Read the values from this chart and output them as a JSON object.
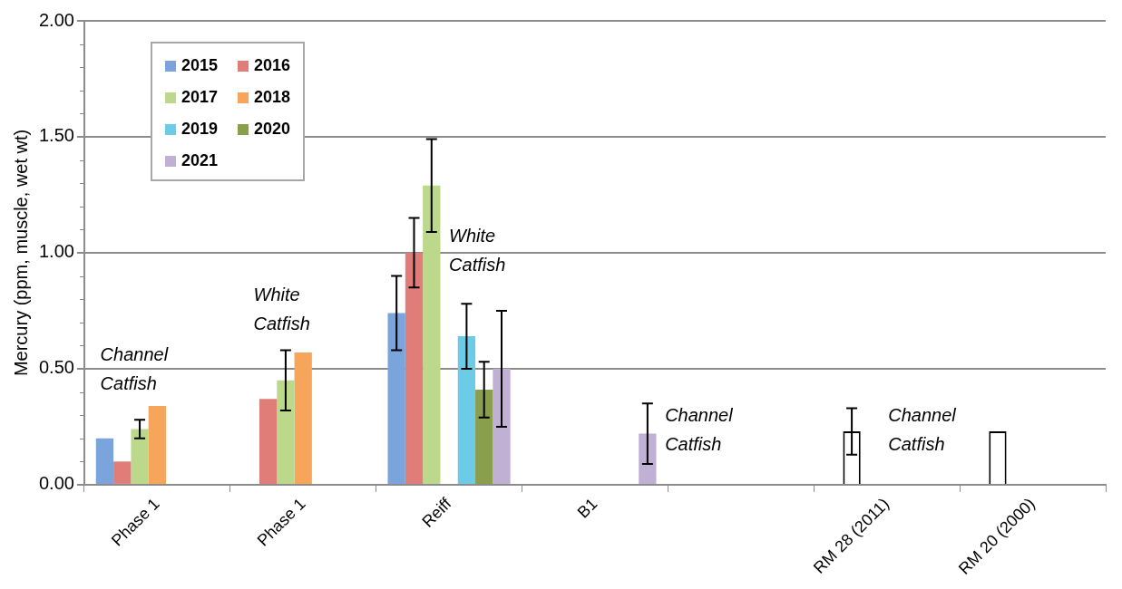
{
  "chart_data": {
    "type": "bar",
    "ylabel": "Mercury (ppm, muscle, wet wt)",
    "categories": [
      "Phase 1",
      "Phase 1",
      "Reiff",
      "B1",
      null,
      "RM 28 (2011)",
      "RM 20 (2000)"
    ],
    "ylim": [
      0,
      2
    ],
    "yticks": [
      {
        "value": 0,
        "label": "0.00"
      },
      {
        "value": 0.5,
        "label": "0.50"
      },
      {
        "value": 1,
        "label": "1.00"
      },
      {
        "value": 1.5,
        "label": "1.50"
      },
      {
        "value": 2,
        "label": "2.00"
      }
    ],
    "grid": "y",
    "legend": "top left",
    "series": [
      {
        "name": "2015",
        "color": "#7ba3dc",
        "values": [
          0.2,
          null,
          0.74,
          null,
          null,
          null,
          null
        ],
        "errors": [
          null,
          null,
          0.16,
          null,
          null,
          null,
          null
        ]
      },
      {
        "name": "2016",
        "color": "#e07d78",
        "values": [
          0.1,
          0.37,
          1.0,
          null,
          null,
          0.23,
          0.23
        ],
        "errors": [
          null,
          null,
          0.15,
          null,
          null,
          0.1,
          null
        ],
        "colors": [
          "#e07d78",
          "#e07d78",
          "#e07d78",
          "#e07d78",
          "#e07d78",
          "#ffffff",
          "#ffffff"
        ]
      },
      {
        "name": "2017",
        "color": "#bcd88a",
        "values": [
          0.24,
          0.45,
          1.29,
          null,
          null,
          null,
          null
        ],
        "errors": [
          0.04,
          0.13,
          0.2,
          null,
          null,
          null,
          null
        ]
      },
      {
        "name": "2018",
        "color": "#f6a55a",
        "values": [
          0.34,
          0.57,
          null,
          null,
          null,
          null,
          null
        ]
      },
      {
        "name": "2019",
        "color": "#6ccbe6",
        "values": [
          null,
          null,
          0.64,
          null,
          null,
          null,
          null
        ],
        "errors": [
          null,
          null,
          0.14,
          null,
          null,
          null,
          null
        ]
      },
      {
        "name": "2020",
        "color": "#8a9f4b",
        "values": [
          null,
          null,
          0.41,
          null,
          null,
          null,
          null
        ],
        "errors": [
          null,
          null,
          0.12,
          null,
          null,
          null,
          null
        ]
      },
      {
        "name": "2021",
        "color": "#bfb0d4",
        "values": [
          null,
          null,
          0.5,
          0.22,
          null,
          null,
          null
        ],
        "errors": [
          null,
          null,
          0.25,
          0.13,
          null,
          null,
          null
        ]
      }
    ],
    "annotations": [
      "Channel Catfish",
      "White Catfish",
      "White Catfish",
      "Channel Catfish",
      "Channel Catfish"
    ]
  }
}
